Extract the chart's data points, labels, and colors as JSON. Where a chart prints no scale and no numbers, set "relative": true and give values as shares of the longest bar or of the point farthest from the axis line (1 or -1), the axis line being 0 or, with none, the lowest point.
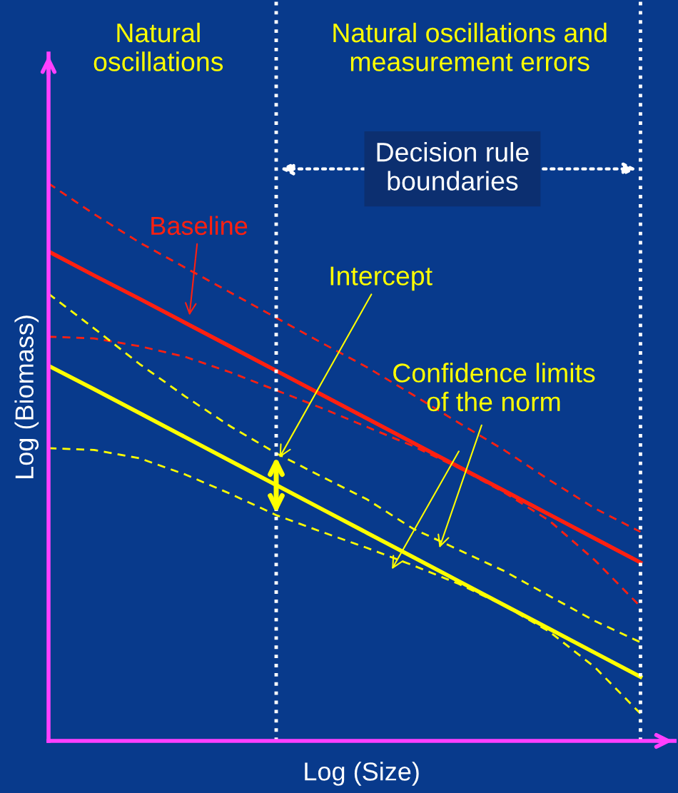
{
  "chart_data": {
    "type": "line",
    "relative": true,
    "xlabel": "Log (Size)",
    "ylabel": "Log (Biomass)",
    "categories": [
      null,
      null,
      null,
      null,
      null,
      null,
      null,
      null,
      null,
      null,
      null,
      null,
      null,
      null
    ],
    "series": [
      {
        "name": "Baseline",
        "color": "#ff2010",
        "line_style": "solid",
        "values": [
          0.878,
          0.835,
          0.793,
          0.75,
          0.707,
          0.664,
          0.621,
          0.578,
          0.535,
          0.492,
          0.449,
          0.406,
          0.363,
          0.32
        ]
      },
      {
        "color": "#ff2010",
        "line_style": "dashed",
        "values": [
          1.0,
          0.945,
          0.894,
          0.849,
          0.804,
          0.759,
          0.714,
          0.67,
          0.621,
          0.571,
          0.522,
          0.468,
          0.417,
          0.375
        ]
      },
      {
        "color": "#ff2010",
        "line_style": "dashed",
        "values": [
          0.725,
          0.722,
          0.708,
          0.689,
          0.661,
          0.629,
          0.597,
          0.563,
          0.529,
          0.49,
          0.446,
          0.395,
          0.324,
          0.241
        ]
      },
      {
        "color": "#ffff00",
        "line_style": "solid",
        "values": [
          0.673,
          0.631,
          0.588,
          0.545,
          0.502,
          0.459,
          0.416,
          0.373,
          0.33,
          0.287,
          0.244,
          0.201,
          0.158,
          0.115
        ]
      },
      {
        "color": "#ffff00",
        "line_style": "dashed",
        "values": [
          0.802,
          0.74,
          0.676,
          0.618,
          0.564,
          0.516,
          0.474,
          0.433,
          0.381,
          0.343,
          0.305,
          0.26,
          0.215,
          0.177
        ]
      },
      {
        "color": "#ffff00",
        "line_style": "dashed",
        "values": [
          0.525,
          0.522,
          0.507,
          0.478,
          0.443,
          0.405,
          0.375,
          0.346,
          0.315,
          0.282,
          0.243,
          0.196,
          0.132,
          0.049
        ]
      }
    ],
    "annotations": [
      "Natural\noscillations",
      "Natural oscillations and\nmeasurement errors",
      "Decision rule\nboundaries",
      "Intercept",
      "Confidence limits\nof the norm"
    ],
    "grid": false,
    "marker": "none"
  }
}
